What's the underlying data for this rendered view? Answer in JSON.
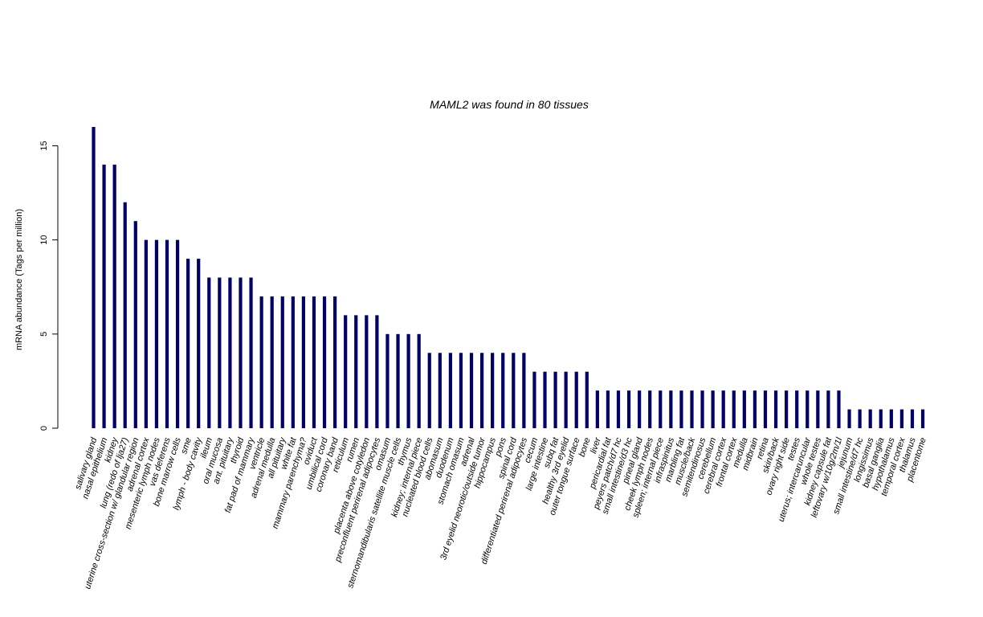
{
  "chart_data": {
    "type": "bar",
    "title": "MAML2  was found in  80  tissues",
    "xlabel": "",
    "ylabel": "mRNA abundance (Tags per million)",
    "ylim": [
      0,
      16
    ],
    "yticks": [
      0,
      5,
      10,
      15
    ],
    "bar_color": "#000066",
    "categories": [
      "salivary gland",
      "nasal epithelium",
      "kidney",
      "lung (redo of lja27)",
      "uterine cross-section w/ glandular region",
      "adrenal cortex",
      "mesenteric lymph nodes",
      "vas deferens",
      "bone marrow cells",
      "sme",
      "lymph - body cavity",
      "ileum",
      "oral mucosa",
      "ant. pituitary",
      "thyroid",
      "fat pad of mammary",
      "ventricle",
      "adrenal medulla",
      "all pituitary",
      "white fat",
      "mammary parenchyma?",
      "oviduct",
      "umbilical cord",
      "coronary band",
      "reticulum",
      "rumen",
      "placenta above cotyledon",
      "preconfluent perirenal adipocytes",
      "omasum",
      "sternomandibularis satellite muscle cells",
      "thymus",
      "kidney; internal piece",
      "nucleated blood cells",
      "abomasum",
      "duodenum",
      "stomach omasum",
      "adrenal",
      "3rd eyelid neorotic/outside tumor",
      "hippocampus",
      "pons",
      "spinal cord",
      "differentiated perirenal adipocytes",
      "cecum",
      "large intestine",
      "subq fat",
      "healthy 3rd eyelid",
      "outer tongue surface",
      "bone",
      "liver",
      "pericardial fat",
      "peyers patch/d7 hc",
      "small intestine/d3 hc",
      "pineal gland",
      "cheek lymph nodes",
      "spleen; internal piece",
      "infraspinitus",
      "marbling fat",
      "muscle/back",
      "semitendinosus",
      "cerebellum",
      "cerebral cortex",
      "frontal cortex",
      "medulla",
      "midbrain",
      "retina",
      "skin/back",
      "ovary right side",
      "testes",
      "uterus; intercaruncular",
      "whole testes",
      "kidney capsule fat",
      "leftovary w/10g/2m/1l",
      "jejunum",
      "small intestine/d7 hc",
      "longissimus",
      "basal ganglia",
      "hypothalamus",
      "temporal cortex",
      "thalamus",
      "placentome"
    ],
    "values": [
      16,
      14,
      14,
      12,
      11,
      10,
      10,
      10,
      10,
      9,
      9,
      8,
      8,
      8,
      8,
      8,
      7,
      7,
      7,
      7,
      7,
      7,
      7,
      7,
      6,
      6,
      6,
      6,
      5,
      5,
      5,
      5,
      4,
      4,
      4,
      4,
      4,
      4,
      4,
      4,
      4,
      4,
      3,
      3,
      3,
      3,
      3,
      3,
      2,
      2,
      2,
      2,
      2,
      2,
      2,
      2,
      2,
      2,
      2,
      2,
      2,
      2,
      2,
      2,
      2,
      2,
      2,
      2,
      2,
      2,
      2,
      2,
      1,
      1,
      1,
      1,
      1,
      1,
      1,
      1
    ]
  }
}
